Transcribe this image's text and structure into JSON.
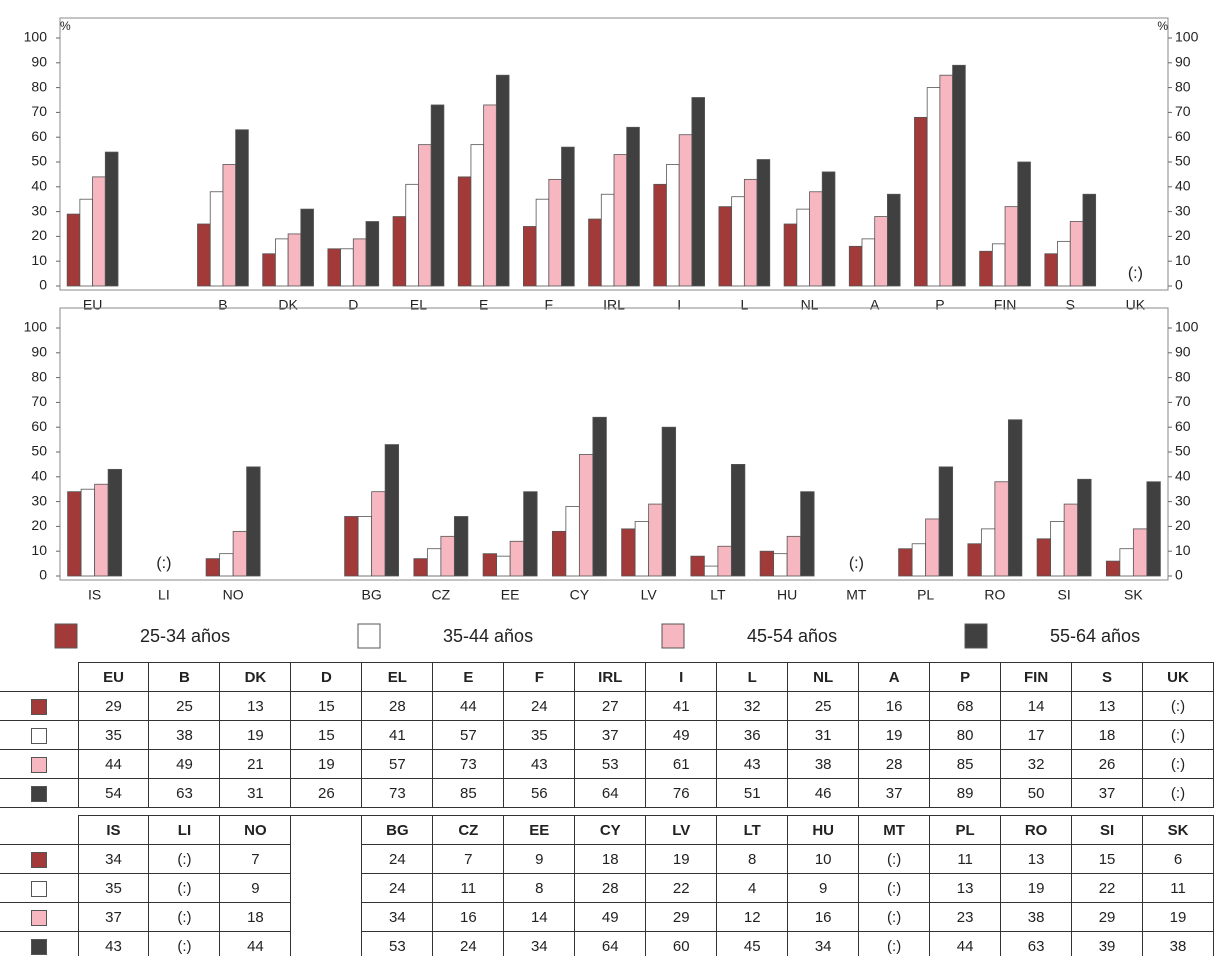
{
  "chart_data": [
    {
      "type": "bar",
      "y_label": "%",
      "missing_label": "(:)",
      "categories": [
        "EU",
        null,
        "B",
        "DK",
        "D",
        "EL",
        "E",
        "F",
        "IRL",
        "I",
        "L",
        "NL",
        "A",
        "P",
        "FIN",
        "S",
        "UK"
      ],
      "ylim": [
        0,
        100
      ],
      "yticks": [
        0,
        10,
        20,
        30,
        40,
        50,
        60,
        70,
        80,
        90,
        100
      ],
      "series": [
        {
          "name": "25-34 años",
          "color": "#a33a3a",
          "values": [
            29,
            null,
            25,
            13,
            15,
            28,
            44,
            24,
            27,
            41,
            32,
            25,
            16,
            68,
            14,
            13,
            null
          ]
        },
        {
          "name": "35-44 años",
          "color": "#ffffff",
          "values": [
            35,
            null,
            38,
            19,
            15,
            41,
            57,
            35,
            37,
            49,
            36,
            31,
            19,
            80,
            17,
            18,
            null
          ]
        },
        {
          "name": "45-54 años",
          "color": "#f6b7c1",
          "values": [
            44,
            null,
            49,
            21,
            19,
            57,
            73,
            43,
            53,
            61,
            43,
            38,
            28,
            85,
            32,
            26,
            null
          ]
        },
        {
          "name": "55-64 años",
          "color": "#404040",
          "values": [
            54,
            null,
            63,
            31,
            26,
            73,
            85,
            56,
            64,
            76,
            51,
            46,
            37,
            89,
            50,
            37,
            null
          ]
        }
      ]
    },
    {
      "type": "bar",
      "missing_label": "(:)",
      "categories": [
        "IS",
        "LI",
        "NO",
        null,
        "BG",
        "CZ",
        "EE",
        "CY",
        "LV",
        "LT",
        "HU",
        "MT",
        "PL",
        "RO",
        "SI",
        "SK"
      ],
      "ylim": [
        0,
        100
      ],
      "yticks": [
        0,
        10,
        20,
        30,
        40,
        50,
        60,
        70,
        80,
        90,
        100
      ],
      "series": [
        {
          "name": "25-34 años",
          "color": "#a33a3a",
          "values": [
            34,
            null,
            7,
            null,
            24,
            7,
            9,
            18,
            19,
            8,
            10,
            null,
            11,
            13,
            15,
            6
          ]
        },
        {
          "name": "35-44 años",
          "color": "#ffffff",
          "values": [
            35,
            null,
            9,
            null,
            24,
            11,
            8,
            28,
            22,
            4,
            9,
            null,
            13,
            19,
            22,
            11
          ]
        },
        {
          "name": "45-54 años",
          "color": "#f6b7c1",
          "values": [
            37,
            null,
            18,
            null,
            34,
            16,
            14,
            49,
            29,
            12,
            16,
            null,
            23,
            38,
            29,
            19
          ]
        },
        {
          "name": "55-64 años",
          "color": "#404040",
          "values": [
            43,
            null,
            44,
            null,
            53,
            24,
            34,
            64,
            60,
            45,
            34,
            null,
            44,
            63,
            39,
            38
          ]
        }
      ]
    }
  ]
}
